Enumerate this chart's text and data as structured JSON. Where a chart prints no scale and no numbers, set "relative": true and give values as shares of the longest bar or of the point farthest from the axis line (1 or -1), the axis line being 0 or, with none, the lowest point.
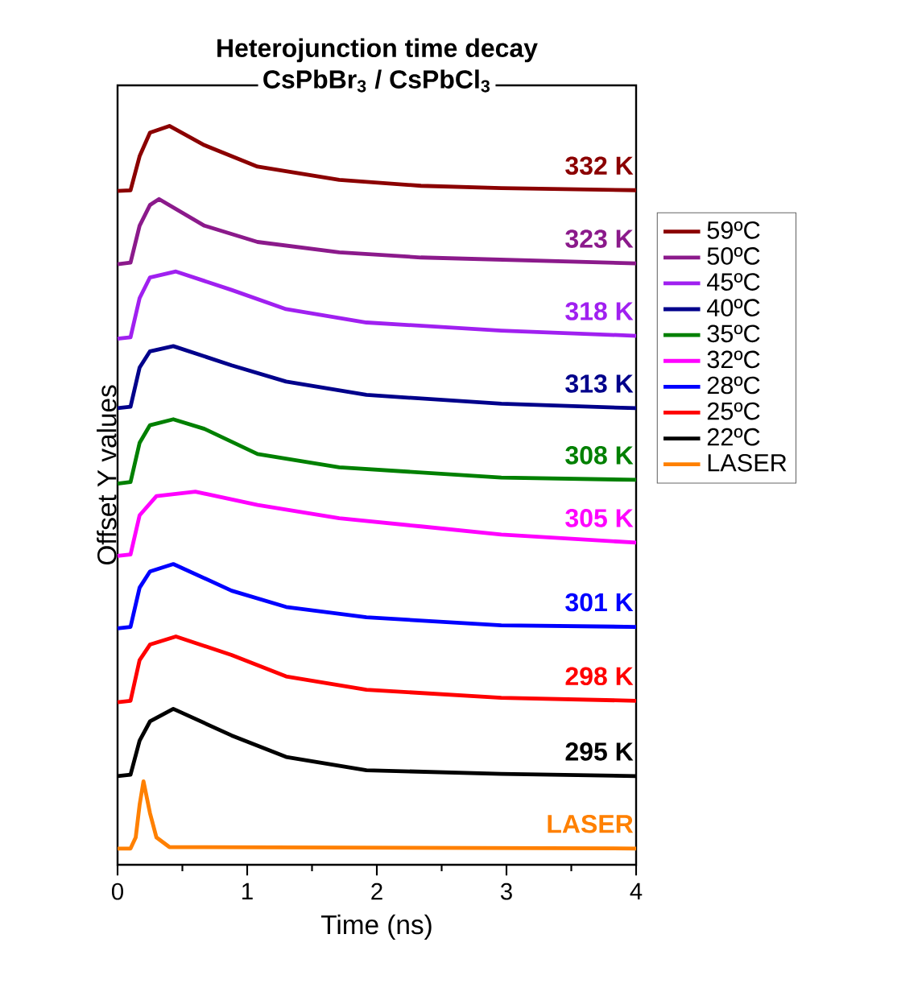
{
  "chart_data": {
    "type": "line",
    "title": "Heterojunction time decay",
    "subtitle": "CsPbBr$_{3}$ / CsPbCl$_{3}$",
    "xlabel": "Time (ns)",
    "ylabel": "Offset Y values",
    "relative": true,
    "legend": "right",
    "xlim": [
      0,
      4
    ],
    "xticks": [
      0,
      1,
      2,
      3,
      4
    ],
    "series": [
      {
        "name": "59ºC",
        "color": "#8b0000",
        "x": [
          0,
          0.1,
          0.17,
          0.25,
          0.4,
          0.67,
          1.08,
          1.71,
          2.34,
          2.96,
          4
        ],
        "values": [
          0.912,
          0.913,
          0.959,
          0.991,
          1.0,
          0.974,
          0.945,
          0.927,
          0.919,
          0.916,
          0.913
        ]
      },
      {
        "name": "50ºC",
        "color": "#8b1a8b",
        "x": [
          0,
          0.1,
          0.17,
          0.25,
          0.32,
          0.67,
          1.08,
          1.71,
          2.34,
          4
        ],
        "values": [
          0.813,
          0.815,
          0.865,
          0.893,
          0.901,
          0.865,
          0.843,
          0.829,
          0.822,
          0.814
        ]
      },
      {
        "name": "45ºC",
        "color": "#a020f0",
        "x": [
          0,
          0.1,
          0.17,
          0.25,
          0.45,
          0.88,
          1.3,
          1.92,
          2.96,
          4
        ],
        "values": [
          0.712,
          0.714,
          0.767,
          0.795,
          0.803,
          0.778,
          0.752,
          0.734,
          0.723,
          0.716
        ]
      },
      {
        "name": "40ºC",
        "color": "#00008b",
        "x": [
          0,
          0.1,
          0.17,
          0.25,
          0.43,
          0.88,
          1.3,
          1.92,
          2.96,
          4
        ],
        "values": [
          0.618,
          0.62,
          0.673,
          0.695,
          0.702,
          0.676,
          0.654,
          0.636,
          0.624,
          0.618
        ]
      },
      {
        "name": "35ºC",
        "color": "#008000",
        "x": [
          0,
          0.1,
          0.17,
          0.25,
          0.43,
          0.67,
          1.08,
          1.71,
          2.96,
          4
        ],
        "values": [
          0.516,
          0.518,
          0.571,
          0.595,
          0.603,
          0.59,
          0.556,
          0.538,
          0.524,
          0.521
        ]
      },
      {
        "name": "32ºC",
        "color": "#ff00ff",
        "x": [
          0,
          0.1,
          0.17,
          0.3,
          0.6,
          1.08,
          1.71,
          2.34,
          2.96,
          4
        ],
        "values": [
          0.418,
          0.42,
          0.473,
          0.499,
          0.505,
          0.487,
          0.469,
          0.458,
          0.447,
          0.436
        ]
      },
      {
        "name": "28ºC",
        "color": "#0000ff",
        "x": [
          0,
          0.1,
          0.17,
          0.25,
          0.43,
          0.88,
          1.3,
          1.92,
          2.96,
          4
        ],
        "values": [
          0.32,
          0.322,
          0.375,
          0.397,
          0.407,
          0.371,
          0.349,
          0.335,
          0.324,
          0.322
        ]
      },
      {
        "name": "25ºC",
        "color": "#ff0000",
        "x": [
          0,
          0.1,
          0.17,
          0.25,
          0.45,
          0.88,
          1.3,
          1.92,
          2.96,
          4
        ],
        "values": [
          0.22,
          0.222,
          0.277,
          0.298,
          0.309,
          0.284,
          0.255,
          0.237,
          0.226,
          0.222
        ]
      },
      {
        "name": "22ºC",
        "color": "#000000",
        "x": [
          0,
          0.1,
          0.17,
          0.25,
          0.43,
          0.88,
          1.3,
          1.92,
          2.96,
          4
        ],
        "values": [
          0.12,
          0.122,
          0.168,
          0.194,
          0.211,
          0.175,
          0.146,
          0.128,
          0.123,
          0.12
        ]
      },
      {
        "name": "LASER",
        "color": "#ff8000",
        "x": [
          0,
          0.1,
          0.14,
          0.17,
          0.2,
          0.25,
          0.3,
          0.4,
          4
        ],
        "values": [
          0.022,
          0.022,
          0.037,
          0.081,
          0.113,
          0.07,
          0.037,
          0.024,
          0.022
        ]
      }
    ],
    "annotations": [
      "332 K",
      "323 K",
      "318 K",
      "313 K",
      "308 K",
      "305 K",
      "301 K",
      "298 K",
      "295 K",
      "LASER"
    ]
  }
}
